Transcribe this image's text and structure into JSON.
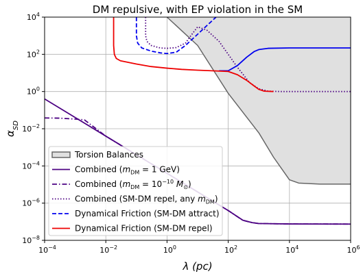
{
  "chart_data": {
    "type": "line",
    "title": "DM repulsive, with EP violation in the SM",
    "xlabel": "λ (pc)",
    "ylabel": "α_SD",
    "xscale": "log",
    "yscale": "log",
    "xlim": [
      0.0001,
      1000000
    ],
    "ylim": [
      1e-08,
      10000
    ],
    "x_ticks": [
      {
        "value": 0.0001,
        "base": "10",
        "exp": "−4"
      },
      {
        "value": 0.01,
        "base": "10",
        "exp": "−2"
      },
      {
        "value": 1,
        "base": "10",
        "exp": "0"
      },
      {
        "value": 100,
        "base": "10",
        "exp": "2"
      },
      {
        "value": 10000,
        "base": "10",
        "exp": "4"
      },
      {
        "value": 1000000,
        "base": "10",
        "exp": "6"
      }
    ],
    "y_ticks": [
      {
        "value": 1e-08,
        "base": "10",
        "exp": "−8"
      },
      {
        "value": 1e-06,
        "base": "10",
        "exp": "−6"
      },
      {
        "value": 0.0001,
        "base": "10",
        "exp": "−4"
      },
      {
        "value": 0.01,
        "base": "10",
        "exp": "−2"
      },
      {
        "value": 1,
        "base": "10",
        "exp": "0"
      },
      {
        "value": 100,
        "base": "10",
        "exp": "2"
      },
      {
        "value": 10000,
        "base": "10",
        "exp": "4"
      }
    ],
    "grid": true,
    "legend_position": "lower-left",
    "series": [
      {
        "name": "Torsion Balances",
        "style": "fill",
        "color": "#666666",
        "fill_color": "#e0e0e0",
        "points": [
          [
            1,
            10000
          ],
          [
            10,
            300
          ],
          [
            100,
            0.8
          ],
          [
            1000,
            0.006
          ],
          [
            3000,
            0.0003
          ],
          [
            10000,
            1.8e-05
          ],
          [
            20000,
            1.2e-05
          ],
          [
            100000,
            1.05e-05
          ],
          [
            1000000,
            1.05e-05
          ]
        ]
      },
      {
        "name": "Combined (m_DM = 1 GeV)",
        "legend": {
          "pre": "Combined (",
          "mvar": "m",
          "sub": "DM",
          "post": " = 1 GeV)"
        },
        "style": "solid",
        "color": "#4b0082",
        "points": [
          [
            0.0001,
            0.4
          ],
          [
            0.001,
            0.04
          ],
          [
            0.01,
            0.004
          ],
          [
            0.1,
            0.0004
          ],
          [
            1,
            4e-05
          ],
          [
            10,
            4e-06
          ],
          [
            100,
            4e-07
          ],
          [
            300,
            1.2e-07
          ],
          [
            600,
            9e-08
          ],
          [
            1000,
            8e-08
          ],
          [
            10000,
            7.6e-08
          ],
          [
            1000000,
            7.5e-08
          ]
        ]
      },
      {
        "name": "Combined (m_DM = 10^-10 M_sun)",
        "legend": {
          "pre": "Combined (",
          "mvar": "m",
          "sub": "DM",
          "post": " = 10",
          "sup": "−10",
          "post2": " M",
          "sub2": "⊙",
          "post3": ")"
        },
        "style": "dashdot",
        "color": "#4b0082",
        "points": [
          [
            0.0001,
            0.038
          ],
          [
            0.0003,
            0.037
          ],
          [
            0.001,
            0.033
          ],
          [
            0.002,
            0.03
          ],
          [
            0.01,
            0.004
          ],
          [
            0.1,
            0.0004
          ],
          [
            1,
            4e-05
          ],
          [
            10,
            4e-06
          ],
          [
            100,
            4e-07
          ],
          [
            300,
            1.2e-07
          ],
          [
            600,
            9e-08
          ],
          [
            1000,
            8e-08
          ],
          [
            10000,
            7.6e-08
          ],
          [
            1000000,
            7.5e-08
          ]
        ]
      },
      {
        "name": "Combined (SM-DM repel, any m_DM)",
        "legend": {
          "pre": "Combined (SM-DM repel, any ",
          "mvar": "m",
          "sub": "DM",
          "post": ")"
        },
        "style": "dotted",
        "color": "#4b0082",
        "points": [
          [
            0.2,
            10000
          ],
          [
            0.2,
            1000
          ],
          [
            0.22,
            500
          ],
          [
            0.3,
            300
          ],
          [
            0.6,
            220
          ],
          [
            1,
            210
          ],
          [
            2,
            230
          ],
          [
            4,
            400
          ],
          [
            6,
            1000
          ],
          [
            10,
            3000
          ],
          [
            20,
            2000
          ],
          [
            50,
            500
          ],
          [
            100,
            100
          ],
          [
            200,
            20
          ],
          [
            500,
            3
          ],
          [
            1000,
            1.4
          ],
          [
            2000,
            1.05
          ],
          [
            5000,
            1.0
          ],
          [
            1000000,
            1.0
          ]
        ]
      },
      {
        "name": "Dynamical Friction (SM-DM attract)",
        "style": "dashed",
        "color": "#0000ee",
        "points": [
          [
            0.1,
            10000
          ],
          [
            0.1,
            1000
          ],
          [
            0.11,
            400
          ],
          [
            0.15,
            220
          ],
          [
            0.3,
            150
          ],
          [
            0.6,
            120
          ],
          [
            1,
            110
          ],
          [
            2,
            130
          ],
          [
            4,
            300
          ],
          [
            10,
            1200
          ],
          [
            20,
            3500
          ],
          [
            40,
            10000
          ]
        ]
      },
      {
        "name": "Dynamical Friction (SM-DM attract) (solid)",
        "style": "solid",
        "color": "#0000ee",
        "legend_hidden": true,
        "points": [
          [
            50,
            13
          ],
          [
            100,
            13
          ],
          [
            200,
            25
          ],
          [
            400,
            70
          ],
          [
            700,
            140
          ],
          [
            1000,
            180
          ],
          [
            2000,
            210
          ],
          [
            10000,
            220
          ],
          [
            1000000,
            220
          ]
        ]
      },
      {
        "name": "Dynamical Friction (SM-DM repel)",
        "style": "solid",
        "color": "#ee0000",
        "points": [
          [
            0.018,
            10000
          ],
          [
            0.018,
            300
          ],
          [
            0.019,
            100
          ],
          [
            0.022,
            60
          ],
          [
            0.03,
            45
          ],
          [
            0.1,
            30
          ],
          [
            0.3,
            22
          ],
          [
            1,
            18
          ],
          [
            3,
            15.5
          ],
          [
            10,
            14
          ],
          [
            30,
            13
          ],
          [
            100,
            12
          ],
          [
            200,
            8
          ],
          [
            400,
            4
          ],
          [
            700,
            2
          ],
          [
            1000,
            1.3
          ],
          [
            1500,
            1.05
          ],
          [
            3000,
            1.0
          ]
        ]
      }
    ]
  }
}
